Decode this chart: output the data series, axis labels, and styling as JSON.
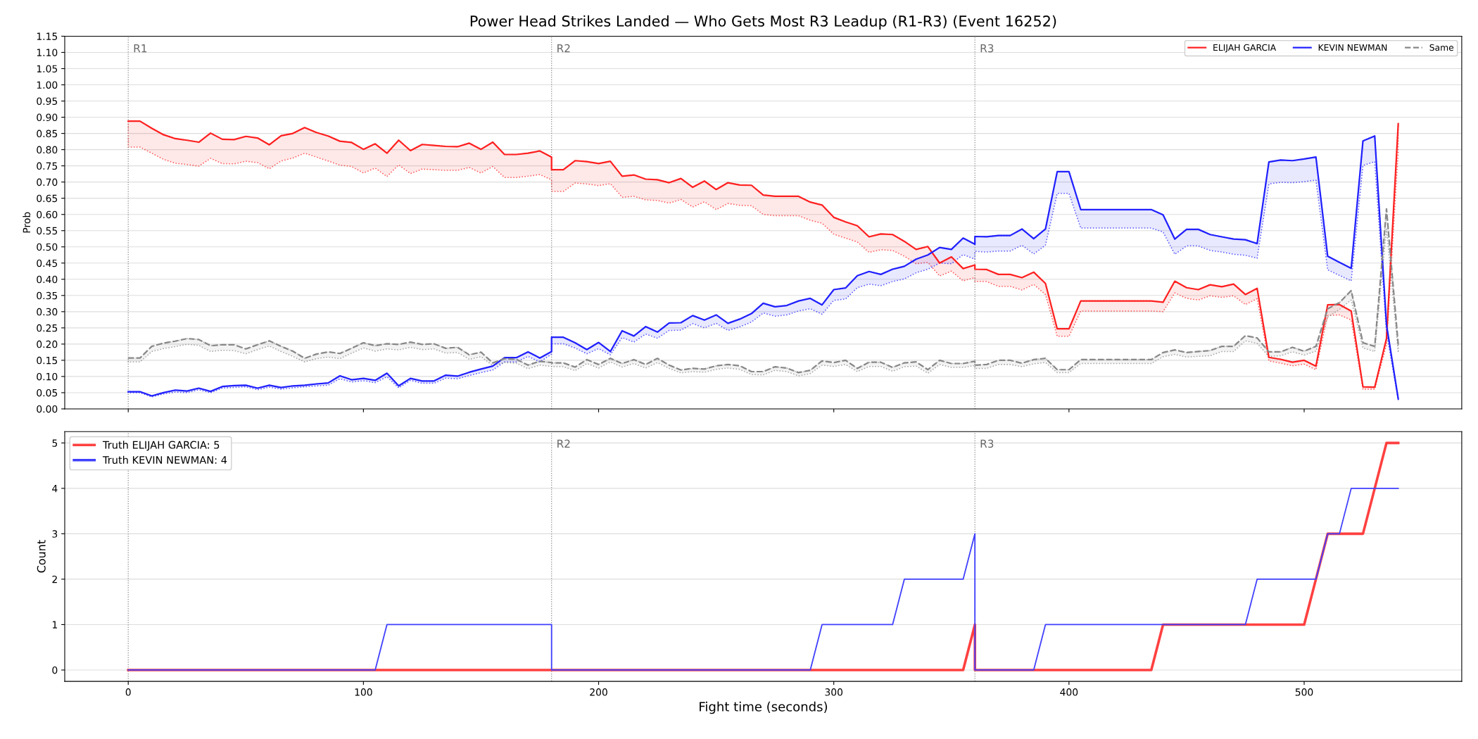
{
  "chart_data": [
    {
      "type": "line",
      "title": "Power Head Strikes Landed — Who Gets Most R3 Leadup (R1-R3) (Event 16252)",
      "ylabel": "Prob",
      "x": [
        0,
        5,
        10,
        15,
        20,
        25,
        30,
        35,
        40,
        45,
        50,
        55,
        60,
        65,
        70,
        75,
        80,
        85,
        90,
        95,
        100,
        105,
        110,
        115,
        120,
        125,
        130,
        135,
        140,
        145,
        150,
        155,
        160,
        165,
        170,
        175,
        180,
        180,
        185,
        190,
        195,
        200,
        205,
        210,
        215,
        220,
        225,
        230,
        235,
        240,
        245,
        250,
        255,
        260,
        265,
        270,
        275,
        280,
        285,
        290,
        295,
        300,
        305,
        310,
        315,
        320,
        325,
        330,
        335,
        340,
        345,
        350,
        355,
        360,
        360,
        365,
        370,
        375,
        380,
        385,
        390,
        395,
        400,
        405,
        410,
        415,
        420,
        425,
        430,
        435,
        440,
        445,
        450,
        455,
        460,
        465,
        470,
        475,
        480,
        485,
        490,
        495,
        500,
        505,
        510,
        515,
        520,
        525,
        530,
        535,
        540
      ],
      "series": [
        {
          "name": "ELIJAH GARCIA",
          "color": "#ff2020",
          "values": [
            0.888,
            0.888,
            0.866,
            0.846,
            0.834,
            0.829,
            0.823,
            0.851,
            0.832,
            0.831,
            0.841,
            0.836,
            0.815,
            0.843,
            0.85,
            0.868,
            0.853,
            0.842,
            0.826,
            0.822,
            0.801,
            0.818,
            0.789,
            0.829,
            0.797,
            0.816,
            0.813,
            0.81,
            0.809,
            0.82,
            0.801,
            0.823,
            0.785,
            0.785,
            0.789,
            0.796,
            0.777,
            0.738,
            0.738,
            0.766,
            0.763,
            0.757,
            0.764,
            0.718,
            0.722,
            0.709,
            0.707,
            0.698,
            0.711,
            0.684,
            0.703,
            0.677,
            0.698,
            0.691,
            0.69,
            0.66,
            0.656,
            0.656,
            0.656,
            0.638,
            0.629,
            0.591,
            0.577,
            0.565,
            0.531,
            0.54,
            0.538,
            0.517,
            0.492,
            0.501,
            0.45,
            0.469,
            0.433,
            0.444,
            0.431,
            0.43,
            0.415,
            0.415,
            0.405,
            0.422,
            0.387,
            0.247,
            0.247,
            0.333,
            0.333,
            0.333,
            0.333,
            0.333,
            0.333,
            0.333,
            0.329,
            0.394,
            0.374,
            0.368,
            0.383,
            0.377,
            0.385,
            0.353,
            0.372,
            0.159,
            0.153,
            0.144,
            0.15,
            0.132,
            0.321,
            0.322,
            0.302,
            0.068,
            0.067,
            0.217,
            0.88
          ],
          "upper": [
            0.888,
            0.888,
            0.866,
            0.846,
            0.834,
            0.829,
            0.823,
            0.851,
            0.832,
            0.831,
            0.841,
            0.836,
            0.815,
            0.843,
            0.85,
            0.868,
            0.853,
            0.842,
            0.826,
            0.822,
            0.801,
            0.818,
            0.789,
            0.829,
            0.797,
            0.816,
            0.813,
            0.81,
            0.809,
            0.82,
            0.801,
            0.823,
            0.785,
            0.785,
            0.789,
            0.796,
            0.777,
            0.738,
            0.738,
            0.766,
            0.763,
            0.757,
            0.764,
            0.718,
            0.722,
            0.709,
            0.707,
            0.698,
            0.711,
            0.684,
            0.703,
            0.677,
            0.698,
            0.691,
            0.69,
            0.66,
            0.656,
            0.656,
            0.656,
            0.638,
            0.629,
            0.591,
            0.577,
            0.565,
            0.531,
            0.54,
            0.538,
            0.517,
            0.492,
            0.501,
            0.45,
            0.469,
            0.433,
            0.444,
            0.431,
            0.43,
            0.415,
            0.415,
            0.405,
            0.422,
            0.387,
            0.247,
            0.247,
            0.333,
            0.333,
            0.333,
            0.333,
            0.333,
            0.333,
            0.333,
            0.329,
            0.394,
            0.374,
            0.368,
            0.383,
            0.377,
            0.385,
            0.353,
            0.372,
            0.159,
            0.153,
            0.144,
            0.15,
            0.132,
            0.321,
            0.322,
            0.302,
            0.068,
            0.067,
            0.217,
            0.88
          ],
          "lower": [
            0.808,
            0.808,
            0.789,
            0.77,
            0.758,
            0.754,
            0.749,
            0.773,
            0.757,
            0.756,
            0.764,
            0.76,
            0.741,
            0.765,
            0.774,
            0.789,
            0.777,
            0.765,
            0.752,
            0.748,
            0.728,
            0.743,
            0.717,
            0.753,
            0.726,
            0.74,
            0.738,
            0.736,
            0.736,
            0.745,
            0.728,
            0.748,
            0.714,
            0.714,
            0.718,
            0.723,
            0.707,
            0.671,
            0.671,
            0.697,
            0.694,
            0.689,
            0.695,
            0.653,
            0.656,
            0.645,
            0.643,
            0.635,
            0.646,
            0.623,
            0.639,
            0.615,
            0.634,
            0.628,
            0.627,
            0.6,
            0.596,
            0.596,
            0.596,
            0.582,
            0.573,
            0.539,
            0.527,
            0.515,
            0.483,
            0.491,
            0.489,
            0.471,
            0.448,
            0.452,
            0.41,
            0.425,
            0.395,
            0.405,
            0.393,
            0.393,
            0.378,
            0.378,
            0.367,
            0.384,
            0.353,
            0.224,
            0.224,
            0.302,
            0.302,
            0.302,
            0.302,
            0.302,
            0.302,
            0.302,
            0.3,
            0.358,
            0.341,
            0.336,
            0.349,
            0.344,
            0.349,
            0.322,
            0.34,
            0.148,
            0.141,
            0.133,
            0.138,
            0.121,
            0.288,
            0.29,
            0.274,
            0.061,
            0.061,
            0.198,
            0.794
          ]
        },
        {
          "name": "KEVIN NEWMAN",
          "color": "#2020ff",
          "values": [
            0.053,
            0.053,
            0.04,
            0.05,
            0.058,
            0.055,
            0.064,
            0.054,
            0.069,
            0.072,
            0.073,
            0.064,
            0.073,
            0.066,
            0.071,
            0.073,
            0.077,
            0.08,
            0.102,
            0.09,
            0.094,
            0.088,
            0.11,
            0.071,
            0.094,
            0.086,
            0.086,
            0.104,
            0.101,
            0.113,
            0.123,
            0.132,
            0.158,
            0.158,
            0.176,
            0.157,
            0.177,
            0.221,
            0.221,
            0.204,
            0.183,
            0.205,
            0.177,
            0.241,
            0.225,
            0.254,
            0.237,
            0.265,
            0.266,
            0.288,
            0.274,
            0.29,
            0.264,
            0.277,
            0.294,
            0.326,
            0.315,
            0.319,
            0.333,
            0.341,
            0.321,
            0.368,
            0.373,
            0.411,
            0.424,
            0.415,
            0.431,
            0.44,
            0.462,
            0.475,
            0.498,
            0.492,
            0.527,
            0.508,
            0.532,
            0.531,
            0.535,
            0.535,
            0.555,
            0.525,
            0.555,
            0.732,
            0.732,
            0.615,
            0.615,
            0.615,
            0.615,
            0.615,
            0.615,
            0.615,
            0.599,
            0.524,
            0.554,
            0.554,
            0.538,
            0.531,
            0.524,
            0.522,
            0.51,
            0.762,
            0.768,
            0.766,
            0.771,
            0.777,
            0.471,
            0.452,
            0.434,
            0.827,
            0.842,
            0.26,
            0.031
          ],
          "upper": [
            0.053,
            0.053,
            0.04,
            0.05,
            0.058,
            0.055,
            0.064,
            0.054,
            0.069,
            0.072,
            0.073,
            0.064,
            0.073,
            0.066,
            0.071,
            0.073,
            0.077,
            0.08,
            0.102,
            0.09,
            0.094,
            0.088,
            0.11,
            0.071,
            0.094,
            0.086,
            0.086,
            0.104,
            0.101,
            0.113,
            0.123,
            0.132,
            0.158,
            0.158,
            0.176,
            0.157,
            0.177,
            0.221,
            0.221,
            0.204,
            0.183,
            0.205,
            0.177,
            0.241,
            0.225,
            0.254,
            0.237,
            0.265,
            0.266,
            0.288,
            0.274,
            0.29,
            0.264,
            0.277,
            0.294,
            0.326,
            0.315,
            0.319,
            0.333,
            0.341,
            0.321,
            0.368,
            0.373,
            0.411,
            0.424,
            0.415,
            0.431,
            0.44,
            0.462,
            0.475,
            0.498,
            0.492,
            0.527,
            0.508,
            0.532,
            0.531,
            0.535,
            0.535,
            0.555,
            0.525,
            0.555,
            0.732,
            0.732,
            0.615,
            0.615,
            0.615,
            0.615,
            0.615,
            0.615,
            0.615,
            0.599,
            0.524,
            0.554,
            0.554,
            0.538,
            0.531,
            0.524,
            0.522,
            0.51,
            0.762,
            0.768,
            0.766,
            0.771,
            0.777,
            0.471,
            0.452,
            0.434,
            0.827,
            0.842,
            0.26,
            0.031
          ],
          "lower": [
            0.05,
            0.05,
            0.037,
            0.046,
            0.052,
            0.05,
            0.059,
            0.05,
            0.064,
            0.066,
            0.068,
            0.059,
            0.067,
            0.061,
            0.065,
            0.068,
            0.071,
            0.073,
            0.093,
            0.083,
            0.087,
            0.081,
            0.099,
            0.065,
            0.088,
            0.079,
            0.079,
            0.095,
            0.093,
            0.103,
            0.112,
            0.12,
            0.145,
            0.145,
            0.162,
            0.145,
            0.169,
            0.201,
            0.201,
            0.188,
            0.17,
            0.186,
            0.167,
            0.22,
            0.206,
            0.231,
            0.218,
            0.242,
            0.243,
            0.263,
            0.25,
            0.264,
            0.242,
            0.253,
            0.268,
            0.296,
            0.286,
            0.29,
            0.302,
            0.309,
            0.292,
            0.335,
            0.339,
            0.374,
            0.385,
            0.38,
            0.393,
            0.401,
            0.42,
            0.431,
            0.45,
            0.448,
            0.476,
            0.462,
            0.486,
            0.484,
            0.487,
            0.487,
            0.505,
            0.478,
            0.505,
            0.665,
            0.665,
            0.558,
            0.558,
            0.558,
            0.558,
            0.558,
            0.558,
            0.558,
            0.546,
            0.477,
            0.503,
            0.503,
            0.489,
            0.484,
            0.477,
            0.474,
            0.465,
            0.694,
            0.699,
            0.698,
            0.701,
            0.706,
            0.429,
            0.412,
            0.395,
            0.751,
            0.763,
            0.235,
            0.028
          ]
        },
        {
          "name": "Same",
          "color": "#888888",
          "line_style": "dashed",
          "values": [
            0.157,
            0.157,
            0.193,
            0.203,
            0.209,
            0.217,
            0.214,
            0.195,
            0.198,
            0.198,
            0.185,
            0.198,
            0.21,
            0.193,
            0.178,
            0.156,
            0.169,
            0.176,
            0.171,
            0.187,
            0.204,
            0.195,
            0.201,
            0.199,
            0.206,
            0.199,
            0.201,
            0.187,
            0.19,
            0.167,
            0.175,
            0.142,
            0.155,
            0.153,
            0.135,
            0.147,
            0.143,
            0.142,
            0.142,
            0.129,
            0.152,
            0.137,
            0.156,
            0.14,
            0.152,
            0.137,
            0.156,
            0.135,
            0.12,
            0.125,
            0.123,
            0.133,
            0.137,
            0.133,
            0.115,
            0.115,
            0.13,
            0.126,
            0.112,
            0.119,
            0.148,
            0.143,
            0.15,
            0.125,
            0.144,
            0.144,
            0.128,
            0.142,
            0.145,
            0.121,
            0.15,
            0.14,
            0.14,
            0.147,
            0.135,
            0.137,
            0.15,
            0.15,
            0.141,
            0.152,
            0.156,
            0.121,
            0.121,
            0.152,
            0.152,
            0.152,
            0.152,
            0.152,
            0.152,
            0.152,
            0.174,
            0.182,
            0.174,
            0.177,
            0.18,
            0.193,
            0.193,
            0.226,
            0.219,
            0.176,
            0.176,
            0.19,
            0.178,
            0.193,
            0.309,
            0.328,
            0.365,
            0.204,
            0.193,
            0.617,
            0.198
          ],
          "upper": [
            0.157,
            0.157,
            0.193,
            0.203,
            0.209,
            0.217,
            0.214,
            0.195,
            0.198,
            0.198,
            0.185,
            0.198,
            0.21,
            0.193,
            0.178,
            0.156,
            0.169,
            0.176,
            0.171,
            0.187,
            0.204,
            0.195,
            0.201,
            0.199,
            0.206,
            0.199,
            0.201,
            0.187,
            0.19,
            0.167,
            0.175,
            0.142,
            0.155,
            0.153,
            0.135,
            0.147,
            0.143,
            0.142,
            0.142,
            0.129,
            0.152,
            0.137,
            0.156,
            0.14,
            0.152,
            0.137,
            0.156,
            0.135,
            0.12,
            0.125,
            0.123,
            0.133,
            0.137,
            0.133,
            0.115,
            0.115,
            0.13,
            0.126,
            0.112,
            0.119,
            0.148,
            0.143,
            0.15,
            0.125,
            0.144,
            0.144,
            0.128,
            0.142,
            0.145,
            0.121,
            0.15,
            0.14,
            0.14,
            0.147,
            0.135,
            0.137,
            0.15,
            0.15,
            0.141,
            0.152,
            0.156,
            0.121,
            0.121,
            0.152,
            0.152,
            0.152,
            0.152,
            0.152,
            0.152,
            0.152,
            0.174,
            0.182,
            0.174,
            0.177,
            0.18,
            0.193,
            0.193,
            0.226,
            0.219,
            0.176,
            0.176,
            0.19,
            0.178,
            0.193,
            0.309,
            0.328,
            0.365,
            0.204,
            0.193,
            0.617,
            0.198
          ],
          "lower": [
            0.145,
            0.145,
            0.177,
            0.186,
            0.192,
            0.199,
            0.196,
            0.177,
            0.181,
            0.18,
            0.17,
            0.183,
            0.194,
            0.177,
            0.162,
            0.145,
            0.155,
            0.16,
            0.155,
            0.172,
            0.188,
            0.178,
            0.185,
            0.182,
            0.19,
            0.183,
            0.185,
            0.172,
            0.174,
            0.153,
            0.161,
            0.134,
            0.143,
            0.141,
            0.124,
            0.135,
            0.131,
            0.13,
            0.13,
            0.118,
            0.14,
            0.126,
            0.145,
            0.129,
            0.14,
            0.126,
            0.143,
            0.125,
            0.111,
            0.115,
            0.113,
            0.122,
            0.126,
            0.122,
            0.106,
            0.105,
            0.119,
            0.115,
            0.102,
            0.109,
            0.135,
            0.131,
            0.137,
            0.115,
            0.131,
            0.131,
            0.116,
            0.13,
            0.132,
            0.11,
            0.137,
            0.128,
            0.128,
            0.134,
            0.125,
            0.125,
            0.137,
            0.137,
            0.13,
            0.139,
            0.143,
            0.112,
            0.112,
            0.14,
            0.14,
            0.14,
            0.14,
            0.14,
            0.14,
            0.14,
            0.161,
            0.168,
            0.16,
            0.162,
            0.164,
            0.177,
            0.177,
            0.21,
            0.202,
            0.162,
            0.164,
            0.176,
            0.166,
            0.178,
            0.283,
            0.307,
            0.336,
            0.188,
            0.177,
            0.555,
            0.174
          ]
        }
      ],
      "xlim": [
        -27,
        567
      ],
      "xticks": [
        0,
        100,
        200,
        300,
        400,
        500
      ],
      "ylim": [
        0,
        1.15
      ],
      "yticks": [
        {
          "value": 0,
          "label": "0.00"
        },
        {
          "value": 0.05,
          "label": "0.05"
        },
        {
          "value": 0.1,
          "label": "0.10"
        },
        {
          "value": 0.15,
          "label": "0.15"
        },
        {
          "value": 0.2,
          "label": "0.20"
        },
        {
          "value": 0.25,
          "label": "0.25"
        },
        {
          "value": 0.3,
          "label": "0.30"
        },
        {
          "value": 0.35,
          "label": "0.35"
        },
        {
          "value": 0.4,
          "label": "0.40"
        },
        {
          "value": 0.45,
          "label": "0.45"
        },
        {
          "value": 0.5,
          "label": "0.50"
        },
        {
          "value": 0.55,
          "label": "0.55"
        },
        {
          "value": 0.6,
          "label": "0.60"
        },
        {
          "value": 0.65,
          "label": "0.65"
        },
        {
          "value": 0.7,
          "label": "0.70"
        },
        {
          "value": 0.75,
          "label": "0.75"
        },
        {
          "value": 0.8,
          "label": "0.80"
        },
        {
          "value": 0.85,
          "label": "0.85"
        },
        {
          "value": 0.9,
          "label": "0.90"
        },
        {
          "value": 0.95,
          "label": "0.95"
        },
        {
          "value": 1,
          "label": "1.00"
        },
        {
          "value": 1.05,
          "label": "1.05"
        },
        {
          "value": 1.1,
          "label": "1.10"
        },
        {
          "value": 1.15,
          "label": "1.15"
        }
      ],
      "tick_labels": "y",
      "grid": "y",
      "legend": "top right",
      "ref_lines": [
        {
          "axis": "x",
          "value": 0,
          "label": "R1",
          "color": "#888888",
          "line_style": "dotted"
        },
        {
          "axis": "x",
          "value": 180,
          "label": "R2",
          "color": "#888888",
          "line_style": "dotted"
        },
        {
          "axis": "x",
          "value": 360,
          "label": "R3",
          "color": "#888888",
          "line_style": "dotted"
        }
      ]
    },
    {
      "type": "line",
      "xlabel": "Fight time (seconds)",
      "ylabel": "Count",
      "x": [
        0,
        5,
        10,
        15,
        20,
        25,
        30,
        35,
        40,
        45,
        50,
        55,
        60,
        65,
        70,
        75,
        80,
        85,
        90,
        95,
        100,
        105,
        110,
        115,
        120,
        125,
        130,
        135,
        140,
        145,
        150,
        155,
        160,
        165,
        170,
        175,
        180,
        180,
        185,
        190,
        195,
        200,
        205,
        210,
        215,
        220,
        225,
        230,
        235,
        240,
        245,
        250,
        255,
        260,
        265,
        270,
        275,
        280,
        285,
        290,
        295,
        300,
        305,
        310,
        315,
        320,
        325,
        330,
        335,
        340,
        345,
        350,
        355,
        360,
        360,
        365,
        370,
        375,
        380,
        385,
        390,
        395,
        400,
        405,
        410,
        415,
        420,
        425,
        430,
        435,
        440,
        445,
        450,
        455,
        460,
        465,
        470,
        475,
        480,
        485,
        490,
        495,
        500,
        505,
        510,
        515,
        520,
        525,
        530,
        535,
        540
      ],
      "series": [
        {
          "name": "Truth ELIJAH GARCIA: 5",
          "color": "#ff4040",
          "values": [
            0,
            0,
            0,
            0,
            0,
            0,
            0,
            0,
            0,
            0,
            0,
            0,
            0,
            0,
            0,
            0,
            0,
            0,
            0,
            0,
            0,
            0,
            0,
            0,
            0,
            0,
            0,
            0,
            0,
            0,
            0,
            0,
            0,
            0,
            0,
            0,
            0,
            0,
            0,
            0,
            0,
            0,
            0,
            0,
            0,
            0,
            0,
            0,
            0,
            0,
            0,
            0,
            0,
            0,
            0,
            0,
            0,
            0,
            0,
            0,
            0,
            0,
            0,
            0,
            0,
            0,
            0,
            0,
            0,
            0,
            0,
            0,
            0,
            1,
            0,
            0,
            0,
            0,
            0,
            0,
            0,
            0,
            0,
            0,
            0,
            0,
            0,
            0,
            0,
            0,
            1,
            1,
            1,
            1,
            1,
            1,
            1,
            1,
            1,
            1,
            1,
            1,
            1,
            2,
            3,
            3,
            3,
            3,
            4,
            5,
            5
          ]
        },
        {
          "name": "Truth KEVIN NEWMAN: 4",
          "color": "#4040ff",
          "values": [
            0,
            0,
            0,
            0,
            0,
            0,
            0,
            0,
            0,
            0,
            0,
            0,
            0,
            0,
            0,
            0,
            0,
            0,
            0,
            0,
            0,
            0,
            1,
            1,
            1,
            1,
            1,
            1,
            1,
            1,
            1,
            1,
            1,
            1,
            1,
            1,
            1,
            0,
            0,
            0,
            0,
            0,
            0,
            0,
            0,
            0,
            0,
            0,
            0,
            0,
            0,
            0,
            0,
            0,
            0,
            0,
            0,
            0,
            0,
            0,
            1,
            1,
            1,
            1,
            1,
            1,
            1,
            2,
            2,
            2,
            2,
            2,
            2,
            3,
            0,
            0,
            0,
            0,
            0,
            0,
            1,
            1,
            1,
            1,
            1,
            1,
            1,
            1,
            1,
            1,
            1,
            1,
            1,
            1,
            1,
            1,
            1,
            1,
            2,
            2,
            2,
            2,
            2,
            2,
            3,
            3,
            4,
            4,
            4,
            4,
            4
          ]
        }
      ],
      "xlim": [
        -27,
        567
      ],
      "xticks": [
        0,
        100,
        200,
        300,
        400,
        500
      ],
      "ylim": [
        -0.25,
        5.25
      ],
      "yticks": [
        0,
        1,
        2,
        3,
        4,
        5
      ],
      "grid": "y",
      "legend": "top left",
      "ref_lines": [
        {
          "axis": "x",
          "value": 0,
          "label": null,
          "color": "#888888",
          "line_style": "dotted"
        },
        {
          "axis": "x",
          "value": 180,
          "label": "R2",
          "color": "#888888",
          "line_style": "dotted"
        },
        {
          "axis": "x",
          "value": 360,
          "label": "R3",
          "color": "#888888",
          "line_style": "dotted"
        }
      ]
    }
  ]
}
